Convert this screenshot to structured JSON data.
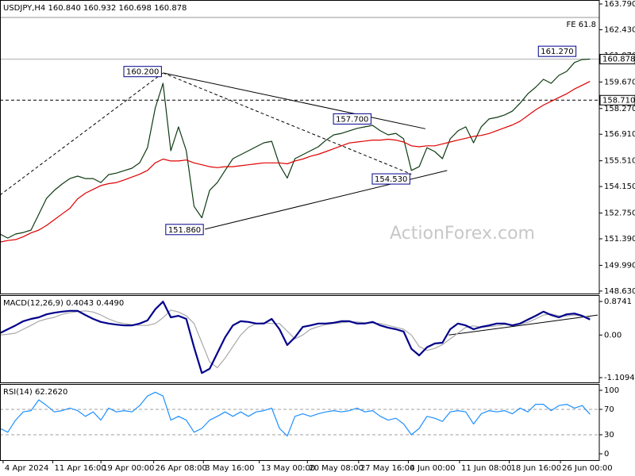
{
  "chart_data": [
    {
      "type": "line",
      "header": "USDJPY,H4  160.840 160.932 160.698 160.878",
      "watermark": "ActionForex.com",
      "xlim": [
        0,
        386
      ],
      "ylim": [
        148.5,
        164.0
      ],
      "yticks": [
        {
          "value": 163.79,
          "label": "163.790"
        },
        {
          "value": 162.43,
          "label": "162.430"
        },
        {
          "value": 161.07,
          "label": "161.070"
        },
        {
          "value": 159.67,
          "label": "159.670"
        },
        {
          "value": 158.27,
          "label": "158.270"
        },
        {
          "value": 156.91,
          "label": "156.910"
        },
        {
          "value": 155.51,
          "label": "155.510"
        },
        {
          "value": 154.15,
          "label": "154.150"
        },
        {
          "value": 152.75,
          "label": "152.750"
        },
        {
          "value": 151.39,
          "label": "151.390"
        },
        {
          "value": 149.99,
          "label": "149.990"
        },
        {
          "value": 148.63,
          "label": "148.630"
        }
      ],
      "x": [
        0,
        5,
        10,
        15,
        20,
        25,
        30,
        35,
        40,
        45,
        50,
        55,
        60,
        65,
        70,
        75,
        80,
        85,
        90,
        95,
        100,
        105,
        110,
        115,
        120,
        125,
        130,
        135,
        140,
        145,
        150,
        155,
        160,
        165,
        170,
        175,
        180,
        185,
        190,
        195,
        200,
        205,
        210,
        215,
        220,
        225,
        230,
        235,
        240,
        245,
        250,
        255,
        260,
        265,
        270,
        275,
        280,
        285,
        290,
        295,
        300,
        305,
        310,
        315,
        320,
        325,
        330,
        335,
        340,
        345,
        350,
        355,
        360,
        365,
        370,
        375,
        380
      ],
      "series": [
        {
          "color": "#0d3b12",
          "values": [
            151.64,
            151.43,
            151.64,
            151.72,
            151.85,
            152.69,
            153.53,
            153.95,
            154.28,
            154.57,
            154.7,
            154.57,
            154.57,
            154.36,
            154.78,
            154.86,
            154.99,
            155.12,
            155.41,
            156.2,
            158.3,
            159.6,
            156.04,
            157.3,
            156.04,
            153.1,
            152.5,
            153.95,
            154.36,
            155.0,
            155.62,
            155.83,
            156.04,
            156.25,
            156.46,
            156.54,
            155.3,
            154.6,
            155.62,
            155.83,
            156.04,
            156.25,
            156.6,
            156.88,
            156.96,
            157.09,
            157.22,
            157.3,
            157.38,
            157.09,
            156.88,
            156.96,
            156.67,
            155.0,
            155.2,
            156.2,
            156.0,
            155.62,
            156.67,
            157.09,
            157.3,
            156.46,
            157.3,
            157.72,
            157.8,
            157.93,
            158.13,
            158.55,
            159.05,
            159.39,
            159.81,
            159.6,
            160.02,
            160.23,
            160.7,
            160.86,
            160.878
          ]
        },
        {
          "color": "#e00000",
          "values": [
            151.22,
            151.3,
            151.35,
            151.5,
            151.7,
            151.85,
            152.1,
            152.4,
            152.7,
            153.0,
            153.5,
            153.8,
            154.0,
            154.2,
            154.3,
            154.36,
            154.5,
            154.65,
            154.8,
            155.0,
            155.4,
            155.6,
            155.5,
            155.5,
            155.55,
            155.4,
            155.3,
            155.2,
            155.15,
            155.2,
            155.2,
            155.25,
            155.3,
            155.35,
            155.4,
            155.4,
            155.4,
            155.35,
            155.5,
            155.6,
            155.75,
            155.85,
            156.0,
            156.15,
            156.3,
            156.45,
            156.5,
            156.55,
            156.6,
            156.6,
            156.65,
            156.6,
            156.5,
            156.3,
            156.25,
            156.3,
            156.3,
            156.4,
            156.5,
            156.6,
            156.7,
            156.8,
            156.85,
            156.95,
            157.1,
            157.25,
            157.4,
            157.6,
            157.9,
            158.2,
            158.45,
            158.65,
            158.85,
            159.05,
            159.3,
            159.5,
            159.7
          ]
        }
      ],
      "levels": [
        {
          "value": 163.08,
          "label": "FE 61.8",
          "color": "#9a9a9a",
          "style": "solid",
          "place": "inside"
        },
        {
          "value": 160.878,
          "label": "160.878",
          "color": "#b0b0b0",
          "style": "solid",
          "place": "axis"
        },
        {
          "value": 158.71,
          "label": "158.710",
          "color": "#000000",
          "style": "dashed",
          "place": "axis"
        }
      ],
      "lines": [
        {
          "x": [
            0,
            105
          ],
          "y": [
            153.7,
            160.15
          ],
          "style": "dashed"
        },
        {
          "x": [
            105,
            265
          ],
          "y": [
            160.15,
            154.8
          ],
          "style": "dashed"
        },
        {
          "x": [
            105,
            274
          ],
          "y": [
            160.15,
            157.2
          ],
          "style": "solid"
        },
        {
          "x": [
            132,
            288
          ],
          "y": [
            151.9,
            155.0
          ],
          "style": "solid"
        }
      ],
      "annotations": [
        {
          "label": "160.200",
          "x": 105,
          "value": 160.2
        },
        {
          "label": "151.860",
          "x": 132,
          "value": 151.86
        },
        {
          "label": "157.700",
          "x": 240,
          "value": 157.7
        },
        {
          "label": "154.530",
          "x": 265,
          "value": 154.53
        },
        {
          "label": "161.270",
          "x": 372,
          "value": 161.27
        }
      ]
    },
    {
      "type": "line",
      "header": "MACD(12,26,9) 0.4043 0.4490",
      "xlim": [
        0,
        386
      ],
      "ylim": [
        -1.233,
        1.039
      ],
      "yticks": [
        0.8741,
        {
          "value": 0,
          "label": "0.00"
        },
        -1.1094
      ],
      "x": [
        0,
        5,
        10,
        15,
        20,
        25,
        30,
        35,
        40,
        45,
        50,
        55,
        60,
        65,
        70,
        75,
        80,
        85,
        90,
        95,
        100,
        105,
        110,
        115,
        120,
        125,
        130,
        135,
        140,
        145,
        150,
        155,
        160,
        165,
        170,
        175,
        180,
        185,
        190,
        195,
        200,
        205,
        210,
        215,
        220,
        225,
        230,
        235,
        240,
        245,
        250,
        255,
        260,
        265,
        270,
        275,
        280,
        285,
        290,
        295,
        300,
        305,
        310,
        315,
        320,
        325,
        330,
        335,
        340,
        345,
        350,
        355,
        360,
        365,
        370,
        375,
        380
      ],
      "series": [
        {
          "color": "#a8a8a8",
          "values": [
            0.0,
            0.02,
            0.05,
            0.15,
            0.25,
            0.36,
            0.42,
            0.46,
            0.54,
            0.58,
            0.61,
            0.63,
            0.6,
            0.52,
            0.42,
            0.34,
            0.3,
            0.27,
            0.25,
            0.25,
            0.3,
            0.45,
            0.65,
            0.6,
            0.5,
            0.3,
            -0.2,
            -0.7,
            -0.85,
            -0.6,
            -0.3,
            0.0,
            0.2,
            0.3,
            0.32,
            0.3,
            0.3,
            0.1,
            -0.1,
            0.0,
            0.15,
            0.22,
            0.27,
            0.3,
            0.32,
            0.34,
            0.34,
            0.32,
            0.31,
            0.3,
            0.25,
            0.2,
            0.15,
            0.0,
            -0.3,
            -0.4,
            -0.35,
            -0.25,
            -0.1,
            0.05,
            0.2,
            0.24,
            0.2,
            0.22,
            0.24,
            0.27,
            0.27,
            0.28,
            0.33,
            0.42,
            0.52,
            0.55,
            0.5,
            0.5,
            0.52,
            0.5,
            0.449
          ]
        },
        {
          "color": "#00008b",
          "width": 2.2,
          "values": [
            0.05,
            0.15,
            0.25,
            0.36,
            0.42,
            0.46,
            0.54,
            0.58,
            0.61,
            0.63,
            0.63,
            0.52,
            0.42,
            0.34,
            0.3,
            0.27,
            0.25,
            0.25,
            0.3,
            0.38,
            0.67,
            0.87,
            0.46,
            0.5,
            0.42,
            -0.32,
            -0.99,
            -0.88,
            -0.47,
            -0.06,
            0.25,
            0.36,
            0.34,
            0.3,
            0.3,
            0.42,
            0.15,
            -0.26,
            -0.06,
            0.21,
            0.25,
            0.3,
            0.3,
            0.32,
            0.36,
            0.36,
            0.3,
            0.3,
            0.34,
            0.25,
            0.19,
            0.15,
            0.09,
            -0.36,
            -0.53,
            -0.32,
            -0.22,
            -0.2,
            0.15,
            0.3,
            0.25,
            0.15,
            0.21,
            0.25,
            0.3,
            0.3,
            0.25,
            0.3,
            0.4,
            0.5,
            0.61,
            0.52,
            0.46,
            0.54,
            0.56,
            0.5,
            0.4043
          ]
        }
      ],
      "lines": [
        {
          "x": [
            289,
            385
          ],
          "y": [
            0.0,
            0.52
          ],
          "style": "solid"
        }
      ]
    },
    {
      "type": "line",
      "header": "RSI(14) 62.2620",
      "xlim": [
        0,
        386
      ],
      "ylim": [
        -10,
        110
      ],
      "yticks": [
        100,
        70,
        30,
        0
      ],
      "xticks": [
        {
          "value": 2,
          "label": "4 Apr 2024"
        },
        {
          "value": 34,
          "label": "11 Apr 16:00"
        },
        {
          "value": 65,
          "label": "19 Apr 00:00"
        },
        {
          "value": 99,
          "label": "26 Apr 08:00"
        },
        {
          "value": 131,
          "label": "3 May 16:00"
        },
        {
          "value": 167,
          "label": "13 May 00:00"
        },
        {
          "value": 198,
          "label": "20 May 08:00"
        },
        {
          "value": 231,
          "label": "27 May 16:00"
        },
        {
          "value": 263,
          "label": "4 Jun 00:00"
        },
        {
          "value": 296,
          "label": "11 Jun 08:00"
        },
        {
          "value": 328,
          "label": "18 Jun 16:00"
        },
        {
          "value": 361,
          "label": "26 Jun 00:00"
        }
      ],
      "x": [
        0,
        5,
        10,
        15,
        20,
        25,
        30,
        35,
        40,
        45,
        50,
        55,
        60,
        65,
        70,
        75,
        80,
        85,
        90,
        95,
        100,
        105,
        110,
        115,
        120,
        125,
        130,
        135,
        140,
        145,
        150,
        155,
        160,
        165,
        170,
        175,
        180,
        185,
        190,
        195,
        200,
        205,
        210,
        215,
        220,
        225,
        230,
        235,
        240,
        245,
        250,
        255,
        260,
        265,
        270,
        275,
        280,
        285,
        290,
        295,
        300,
        305,
        310,
        315,
        320,
        325,
        330,
        335,
        340,
        345,
        350,
        355,
        360,
        365,
        370,
        375,
        380
      ],
      "series": [
        {
          "color": "#1e90ff",
          "values": [
            40,
            34,
            53,
            66,
            68,
            85,
            76,
            66,
            68,
            72,
            68,
            59,
            66,
            53,
            72,
            66,
            68,
            66,
            76,
            91,
            97,
            91,
            53,
            59,
            53,
            34,
            40,
            53,
            59,
            66,
            59,
            66,
            59,
            66,
            68,
            72,
            40,
            28,
            59,
            63,
            59,
            63,
            66,
            68,
            66,
            68,
            72,
            66,
            68,
            59,
            53,
            56,
            47,
            30,
            40,
            59,
            56,
            51,
            66,
            68,
            66,
            47,
            63,
            68,
            66,
            68,
            63,
            72,
            66,
            78,
            78,
            68,
            76,
            78,
            72,
            76,
            62.262
          ]
        }
      ],
      "levels": [
        {
          "value": 70,
          "color": "#a0a0a0",
          "style": "dashed"
        },
        {
          "value": 30,
          "color": "#a0a0a0",
          "style": "dashed"
        }
      ]
    }
  ]
}
